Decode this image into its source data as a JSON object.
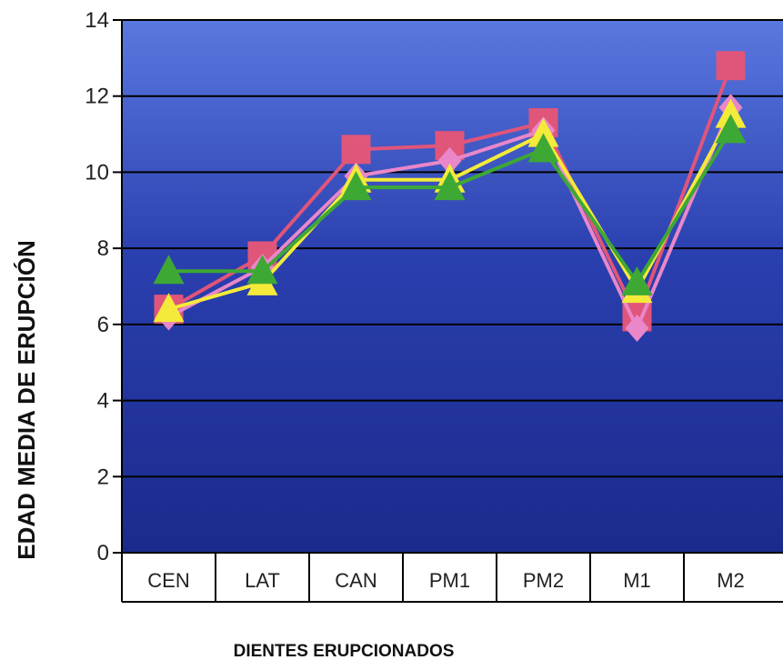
{
  "chart_data": {
    "type": "line",
    "xlabel": "DIENTES ERUPCIONADOS",
    "ylabel": "EDAD MEDIA DE ERUPCIÓN",
    "categories": [
      "CEN",
      "LAT",
      "CAN",
      "PM1",
      "PM2",
      "M1",
      "M2"
    ],
    "ylim": [
      0,
      14
    ],
    "yticks": [
      "0",
      "2",
      "4",
      "6",
      "8",
      "10",
      "12",
      "14"
    ],
    "grid": true,
    "plot_background": [
      "#5a78e0",
      "#2a3fae",
      "#1a2a8c"
    ],
    "series": [
      {
        "values": [
          6.4,
          7.8,
          10.6,
          10.7,
          11.3,
          6.2,
          12.8
        ],
        "color": "#e0557a",
        "marker": "square"
      },
      {
        "values": [
          6.2,
          7.5,
          9.9,
          10.3,
          11.1,
          5.9,
          11.7
        ],
        "color": "#e987c9",
        "marker": "diamond"
      },
      {
        "values": [
          6.4,
          7.1,
          9.8,
          9.8,
          11.0,
          6.9,
          11.5
        ],
        "color": "#f4ea3a",
        "marker": "triangle"
      },
      {
        "values": [
          7.4,
          7.4,
          9.6,
          9.6,
          10.6,
          7.1,
          11.1
        ],
        "color": "#3ea834",
        "marker": "triangle"
      }
    ]
  }
}
